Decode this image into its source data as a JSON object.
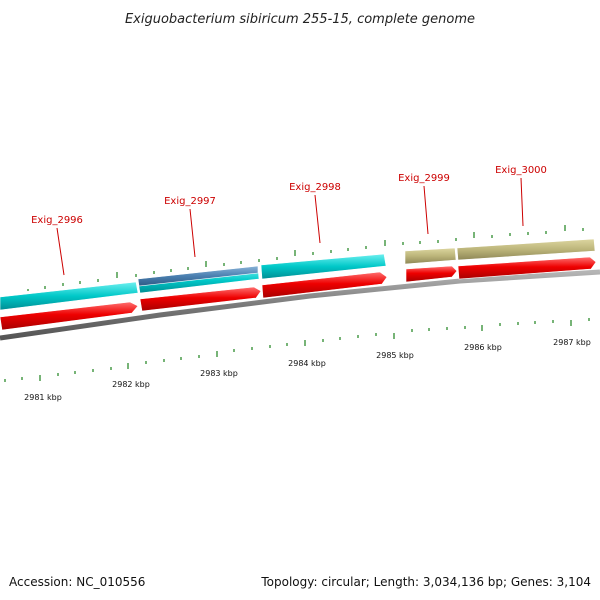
{
  "title": "Exiguobacterium sibiricum 255-15, complete genome",
  "footer": {
    "accession": "Accession: NC_010556",
    "topology": "Topology: circular; Length: 3,034,136 bp; Genes: 3,104"
  },
  "colors": {
    "cds": "#00c4c4",
    "cds_dark": "#009aa0",
    "blue_feature": "#4a7fb0",
    "olive_feature": "#bcb57a",
    "red_feature": "#ee0000",
    "backbone": "#808080",
    "tick": "#2e8b2e",
    "label": "#cc0000"
  },
  "gene_labels": [
    "Exig_2996",
    "Exig_2997",
    "Exig_2998",
    "Exig_2999",
    "Exig_3000"
  ],
  "kbp_labels": [
    "2981 kbp",
    "2982 kbp",
    "2983 kbp",
    "2984 kbp",
    "2985 kbp",
    "2986 kbp",
    "2987 kbp"
  ]
}
